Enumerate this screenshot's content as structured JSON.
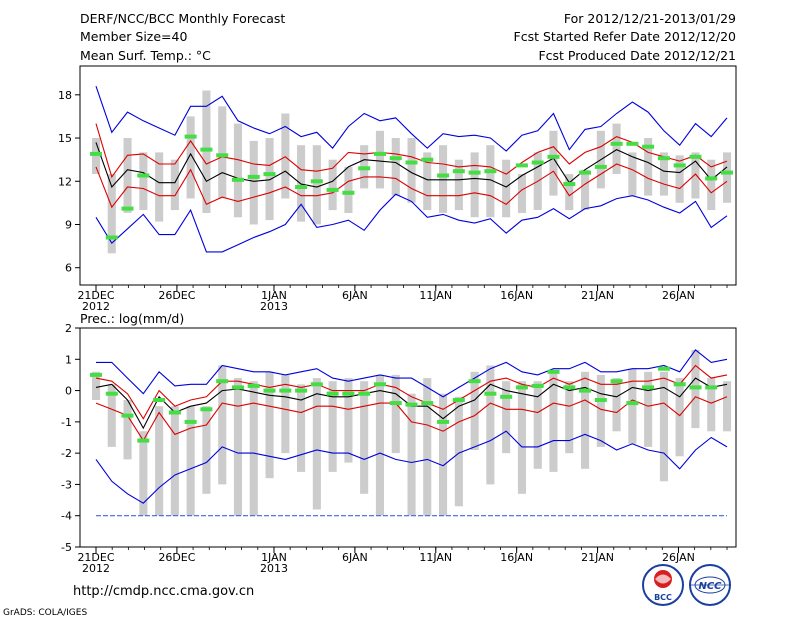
{
  "header": {
    "left": [
      "DERF/NCC/BCC Monthly Forecast",
      "Member Size=40",
      "Mean Surf. Temp.: °C"
    ],
    "right": [
      "For 2012/12/21-2013/01/29",
      "Fcst Started Refer Date 2012/12/20",
      "Fcst Produced Date 2012/12/21"
    ]
  },
  "url": "http://cmdp.ncc.cma.gov.cn",
  "credit": "GrADS: COLA/IGES",
  "logos": {
    "bcc": "BCC",
    "ncc": "NCC"
  },
  "colors": {
    "max_min": "#0000dd",
    "spread": "#dd0000",
    "mean": "#000000",
    "box": "#cccccc",
    "observed": "#44dd44",
    "floor": "#4466dd"
  },
  "chart_data": [
    {
      "type": "box-plume",
      "title": "Mean Surf. Temp.: °C",
      "ylabel": "°C",
      "ylim": [
        4.8,
        20
      ],
      "yticks": [
        6,
        9,
        12,
        15,
        18
      ],
      "ytick_labels": [
        "6",
        "9",
        "12",
        "15",
        "18"
      ],
      "x_days": [
        1,
        40
      ],
      "xticks": [
        {
          "day": 1,
          "label": "21DEC",
          "sub": "2012"
        },
        {
          "day": 6,
          "label": "26DEC",
          "sub": ""
        },
        {
          "day": 12,
          "label": "1JAN",
          "sub": "2013"
        },
        {
          "day": 17,
          "label": "6JAN",
          "sub": ""
        },
        {
          "day": 22,
          "label": "11JAN",
          "sub": ""
        },
        {
          "day": 27,
          "label": "16JAN",
          "sub": ""
        },
        {
          "day": 32,
          "label": "21JAN",
          "sub": ""
        },
        {
          "day": 37,
          "label": "26JAN",
          "sub": ""
        }
      ],
      "series": [
        {
          "name": "max",
          "values": [
            18.6,
            15.4,
            16.8,
            16.2,
            15.7,
            15.2,
            17.2,
            17.2,
            17.9,
            16.2,
            15.7,
            15.3,
            15.8,
            15.1,
            15.4,
            14.3,
            15.8,
            16.7,
            16.2,
            16.4,
            15.3,
            14.3,
            15.3,
            15.1,
            15.2,
            15.0,
            14.1,
            15.2,
            15.5,
            16.7,
            14.2,
            15.6,
            15.8,
            16.7,
            17.5,
            16.8,
            15.5,
            14.5,
            16.0,
            15.1,
            16.4
          ]
        },
        {
          "name": "upper",
          "values": [
            16.0,
            12.3,
            13.8,
            13.9,
            13.2,
            13.2,
            14.8,
            13.2,
            13.7,
            13.5,
            13.2,
            13.1,
            13.7,
            12.8,
            12.7,
            12.9,
            14.0,
            13.9,
            14.0,
            13.9,
            13.7,
            13.3,
            13.2,
            13.0,
            13.1,
            13.0,
            12.5,
            13.3,
            14.0,
            14.4,
            13.2,
            14.0,
            14.4,
            15.1,
            14.7,
            14.0,
            13.7,
            13.4,
            13.8,
            13.0,
            13.4
          ]
        },
        {
          "name": "mean",
          "values": [
            14.7,
            11.6,
            12.8,
            12.6,
            11.9,
            11.9,
            13.9,
            12.0,
            12.6,
            12.2,
            12.0,
            12.1,
            12.7,
            11.8,
            11.6,
            12.0,
            13.0,
            13.5,
            13.4,
            13.3,
            12.6,
            12.1,
            12.1,
            12.1,
            12.2,
            12.1,
            11.6,
            12.4,
            13.0,
            13.6,
            11.9,
            12.8,
            13.5,
            14.2,
            13.7,
            13.3,
            12.7,
            12.6,
            13.4,
            12.1,
            13.0
          ]
        },
        {
          "name": "lower",
          "values": [
            13.0,
            10.2,
            11.6,
            11.5,
            11.0,
            11.0,
            12.8,
            10.4,
            10.9,
            10.6,
            10.9,
            11.2,
            11.6,
            11.0,
            11.0,
            11.2,
            12.0,
            12.3,
            12.3,
            12.2,
            11.5,
            11.0,
            11.0,
            11.0,
            11.2,
            11.0,
            10.4,
            11.4,
            12.0,
            12.7,
            11.0,
            11.8,
            12.5,
            13.2,
            12.8,
            12.2,
            11.8,
            11.5,
            12.5,
            11.2,
            12.0
          ]
        },
        {
          "name": "min",
          "values": [
            9.5,
            7.7,
            8.7,
            9.7,
            8.3,
            8.3,
            10.0,
            7.1,
            7.1,
            7.6,
            8.1,
            8.5,
            9.0,
            10.4,
            8.8,
            9.0,
            9.3,
            8.6,
            10.0,
            11.1,
            10.6,
            9.5,
            9.7,
            9.3,
            9.1,
            9.4,
            8.4,
            9.3,
            9.5,
            10.1,
            9.4,
            10.1,
            10.3,
            10.8,
            11.0,
            10.7,
            10.2,
            9.8,
            10.6,
            8.8,
            9.6
          ]
        },
        {
          "name": "box_top",
          "values": [
            15.0,
            12.5,
            15.0,
            14.0,
            14.0,
            13.5,
            16.5,
            18.3,
            17.2,
            16.0,
            14.8,
            15.0,
            16.7,
            14.5,
            14.5,
            13.5,
            13.0,
            14.5,
            15.5,
            15.0,
            15.0,
            14.0,
            14.5,
            13.5,
            14.0,
            14.5,
            13.5,
            12.5,
            14.0,
            15.5,
            12.5,
            12.8,
            15.5,
            16.0,
            14.0,
            15.0,
            14.0,
            13.8,
            14.0,
            13.5,
            14.0
          ]
        },
        {
          "name": "box_bottom",
          "values": [
            12.5,
            7.0,
            9.8,
            10.0,
            9.2,
            10.0,
            10.8,
            9.8,
            10.8,
            9.5,
            9.0,
            9.3,
            10.8,
            9.2,
            9.0,
            10.0,
            9.8,
            11.5,
            11.5,
            11.0,
            10.5,
            10.0,
            9.8,
            10.0,
            9.5,
            9.5,
            9.5,
            9.8,
            10.0,
            11.0,
            10.0,
            10.0,
            11.5,
            12.5,
            11.0,
            11.0,
            11.0,
            10.5,
            10.8,
            10.0,
            10.5
          ]
        },
        {
          "name": "observed",
          "values": [
            13.9,
            8.1,
            10.1,
            12.4,
            null,
            null,
            15.1,
            14.2,
            13.8,
            12.1,
            12.3,
            12.5,
            null,
            11.6,
            12.0,
            11.4,
            11.2,
            12.9,
            13.9,
            13.6,
            13.3,
            13.5,
            12.4,
            12.7,
            12.6,
            12.7,
            null,
            13.1,
            13.3,
            13.7,
            11.8,
            12.6,
            13.0,
            14.6,
            14.6,
            14.4,
            13.6,
            13.1,
            13.7,
            12.2,
            12.6
          ]
        }
      ]
    },
    {
      "type": "box-plume",
      "title": "Prec.: log(mm/d)",
      "ylabel": "log(mm/d)",
      "ylim": [
        -5,
        2
      ],
      "yticks": [
        -5,
        -4,
        -3,
        -2,
        -1,
        0,
        1,
        2
      ],
      "ytick_labels": [
        "-5",
        "-4",
        "-3",
        "-2",
        "-1",
        "0",
        "1",
        "2"
      ],
      "x_days": [
        1,
        40
      ],
      "xticks": [
        {
          "day": 1,
          "label": "21DEC",
          "sub": "2012"
        },
        {
          "day": 6,
          "label": "26DEC",
          "sub": ""
        },
        {
          "day": 12,
          "label": "1JAN",
          "sub": "2013"
        },
        {
          "day": 17,
          "label": "6JAN",
          "sub": ""
        },
        {
          "day": 22,
          "label": "11JAN",
          "sub": ""
        },
        {
          "day": 27,
          "label": "16JAN",
          "sub": ""
        },
        {
          "day": 32,
          "label": "21JAN",
          "sub": ""
        },
        {
          "day": 37,
          "label": "26JAN",
          "sub": ""
        }
      ],
      "series": [
        {
          "name": "max",
          "values": [
            0.9,
            0.9,
            0.4,
            -0.1,
            0.6,
            0.15,
            0.2,
            0.2,
            0.8,
            0.7,
            0.6,
            0.6,
            0.5,
            0.6,
            0.7,
            0.4,
            0.3,
            0.4,
            0.5,
            0.4,
            0.4,
            0.1,
            -0.2,
            0.1,
            0.4,
            0.7,
            0.9,
            0.6,
            0.5,
            0.7,
            0.7,
            0.9,
            0.6,
            0.6,
            0.7,
            0.7,
            0.8,
            0.6,
            1.3,
            0.9,
            1.0
          ]
        },
        {
          "name": "upper",
          "values": [
            0.4,
            0.3,
            -0.1,
            -0.9,
            0.0,
            -0.5,
            -0.3,
            -0.2,
            0.3,
            0.3,
            0.2,
            0.1,
            0.2,
            0.1,
            0.2,
            0.0,
            0.0,
            0.0,
            0.2,
            0.1,
            -0.2,
            -0.4,
            -0.6,
            -0.3,
            0.0,
            0.3,
            0.4,
            0.2,
            0.1,
            0.4,
            0.2,
            0.4,
            0.2,
            0.2,
            0.3,
            0.3,
            0.4,
            0.2,
            0.8,
            0.4,
            0.5
          ]
        },
        {
          "name": "mean",
          "values": [
            0.1,
            0.2,
            -0.3,
            -1.2,
            -0.2,
            -0.7,
            -0.5,
            -0.4,
            0.0,
            0.05,
            -0.05,
            -0.15,
            -0.2,
            -0.3,
            -0.1,
            -0.2,
            -0.2,
            -0.1,
            0.0,
            -0.1,
            -0.5,
            -0.5,
            -0.9,
            -0.5,
            -0.3,
            0.2,
            0.0,
            -0.1,
            -0.2,
            0.2,
            0.0,
            0.1,
            -0.1,
            -0.2,
            0.1,
            0.0,
            0.1,
            -0.2,
            0.4,
            0.1,
            0.2
          ]
        },
        {
          "name": "lower",
          "values": [
            -0.4,
            -0.6,
            -0.8,
            -1.6,
            -0.7,
            -1.4,
            -1.2,
            -1.1,
            -0.4,
            -0.5,
            -0.4,
            -0.5,
            -0.6,
            -0.7,
            -0.5,
            -0.5,
            -0.6,
            -0.5,
            -0.4,
            -0.4,
            -1.0,
            -1.1,
            -1.3,
            -1.0,
            -0.8,
            -0.4,
            -0.6,
            -0.6,
            -0.7,
            -0.4,
            -0.5,
            -0.3,
            -0.6,
            -0.7,
            -0.3,
            -0.5,
            -0.4,
            -0.8,
            -0.2,
            -0.4,
            -0.2
          ]
        },
        {
          "name": "min",
          "values": [
            -2.2,
            -2.9,
            -3.3,
            -3.6,
            -3.1,
            -2.7,
            -2.5,
            -2.3,
            -1.8,
            -2.0,
            -2.0,
            -2.1,
            -2.2,
            -2.05,
            -1.9,
            -2.0,
            -2.0,
            -2.2,
            -2.0,
            -2.2,
            -2.3,
            -2.2,
            -2.4,
            -2.0,
            -1.8,
            -1.6,
            -1.3,
            -1.8,
            -1.8,
            -1.6,
            -1.6,
            -1.4,
            -1.6,
            -1.9,
            -1.7,
            -1.9,
            -2.0,
            -2.5,
            -1.9,
            -1.5,
            -1.8
          ]
        },
        {
          "name": "box_top",
          "values": [
            0.6,
            0.2,
            -0.3,
            -1.3,
            -0.5,
            -0.5,
            -0.5,
            -0.5,
            0.8,
            0.4,
            0.3,
            0.6,
            0.5,
            0.2,
            0.4,
            0.3,
            0.4,
            0.3,
            0.5,
            0.5,
            -0.1,
            0.4,
            -0.1,
            -0.2,
            0.6,
            0.8,
            0.3,
            0.3,
            0.3,
            0.6,
            0.3,
            0.6,
            0.5,
            0.4,
            0.7,
            0.6,
            0.6,
            0.4,
            1.3,
            0.4,
            0.3
          ]
        },
        {
          "name": "box_bottom",
          "values": [
            -0.3,
            -1.8,
            -2.2,
            -4.0,
            -4.0,
            -4.0,
            -4.0,
            -3.3,
            -3.0,
            -4.0,
            -4.0,
            -2.8,
            -2.0,
            -2.6,
            -3.8,
            -2.6,
            -2.3,
            -3.3,
            -4.0,
            -2.0,
            -4.0,
            -4.0,
            -4.0,
            -3.7,
            -1.9,
            -3.0,
            -2.0,
            -3.3,
            -2.5,
            -2.6,
            -2.0,
            -2.5,
            -1.8,
            -1.3,
            -1.7,
            -1.8,
            -2.9,
            -2.1,
            -1.2,
            -1.3,
            -1.3
          ]
        },
        {
          "name": "observed",
          "values": [
            0.5,
            -0.1,
            -0.8,
            -1.6,
            -0.3,
            -0.7,
            -1.0,
            -0.6,
            0.3,
            0.1,
            0.15,
            0.0,
            0.0,
            0.0,
            0.2,
            -0.1,
            -0.1,
            -0.1,
            0.2,
            -0.4,
            -0.45,
            -0.4,
            -1.0,
            -0.3,
            0.3,
            -0.1,
            -0.2,
            0.1,
            0.15,
            0.6,
            0.1,
            0.0,
            -0.3,
            0.3,
            -0.4,
            0.1,
            0.7,
            0.2,
            0.1,
            0.1,
            null
          ]
        },
        {
          "name": "floor",
          "values": [
            -4,
            -4,
            -4,
            -4,
            -4,
            -4,
            -4,
            -4,
            -4,
            -4,
            -4,
            -4,
            -4,
            -4,
            -4,
            -4,
            -4,
            -4,
            -4,
            -4,
            -4,
            -4,
            -4,
            -4,
            -4,
            -4,
            -4,
            -4,
            -4,
            -4,
            -4,
            -4,
            -4,
            -4,
            -4,
            -4,
            -4,
            -4,
            -4,
            -4,
            -4
          ]
        }
      ]
    }
  ]
}
